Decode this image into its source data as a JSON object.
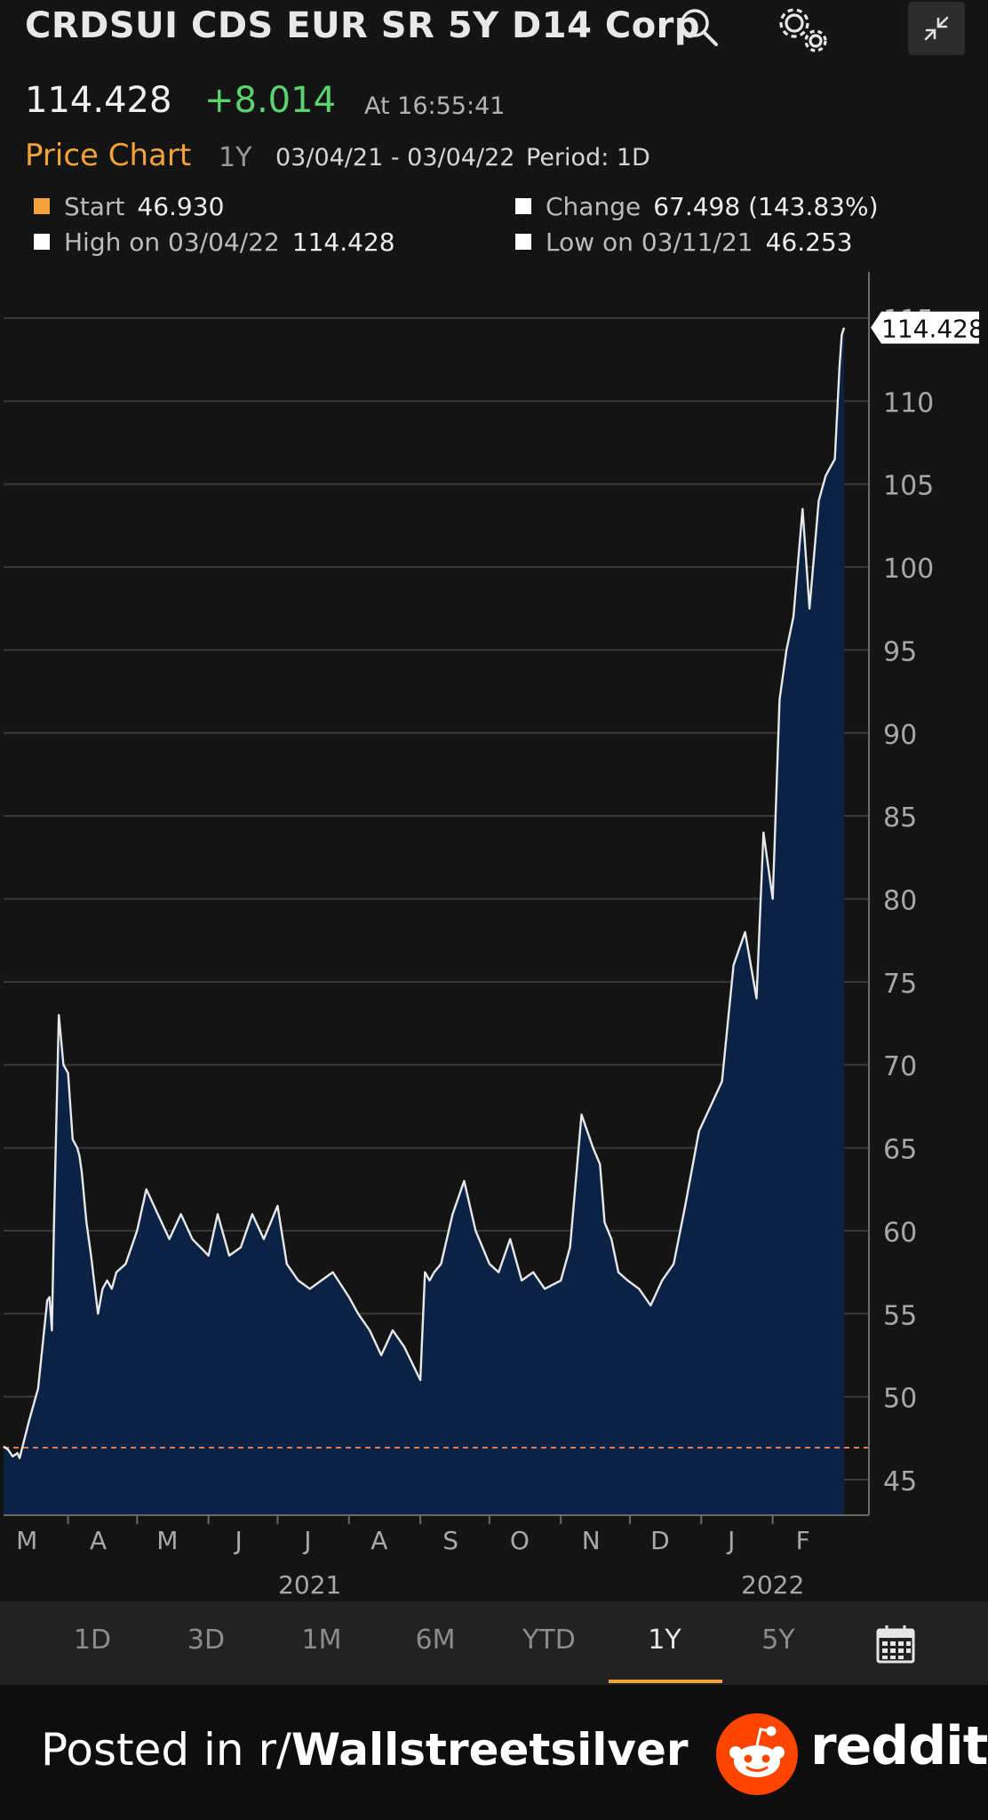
{
  "header": {
    "title": "CRDSUI CDS EUR SR 5Y D14 Corp",
    "last_price": "114.428",
    "change": "+8.014",
    "time": "At 16:55:41",
    "chart_label": "Price Chart",
    "range": "1Y",
    "date_range": "03/04/21 - 03/04/22",
    "period": "Period: 1D",
    "icons": [
      "search-icon",
      "gear-icon",
      "collapse-icon"
    ]
  },
  "stats": {
    "start_label": "Start",
    "start_value": "46.930",
    "change_label": "Change",
    "change_value": "67.498 (143.83%)",
    "high_label": "High on 03/04/22",
    "high_value": "114.428",
    "low_label": "Low on 03/11/21",
    "low_value": "46.253"
  },
  "colors": {
    "accent": "#f4a33a",
    "positive": "#5bd46f",
    "area_fill": "#0c2244",
    "line": "#e8e8e8",
    "reference_line": "#e07a50"
  },
  "chart_data": {
    "type": "area",
    "title": "",
    "xlabel": "",
    "ylabel": "",
    "ylim": [
      43,
      116
    ],
    "grid": true,
    "y_ticks": [
      45,
      50,
      55,
      60,
      65,
      70,
      75,
      80,
      85,
      90,
      95,
      100,
      105,
      110,
      115
    ],
    "x_ticks": [
      {
        "label": "M",
        "date": "2021-03"
      },
      {
        "label": "A",
        "date": "2021-04"
      },
      {
        "label": "M",
        "date": "2021-05"
      },
      {
        "label": "J",
        "date": "2021-06"
      },
      {
        "label": "J",
        "date": "2021-07"
      },
      {
        "label": "A",
        "date": "2021-08"
      },
      {
        "label": "S",
        "date": "2021-09"
      },
      {
        "label": "O",
        "date": "2021-10"
      },
      {
        "label": "N",
        "date": "2021-11"
      },
      {
        "label": "D",
        "date": "2021-12"
      },
      {
        "label": "J",
        "date": "2022-01"
      },
      {
        "label": "F",
        "date": "2022-02"
      }
    ],
    "year_labels": [
      {
        "label": "2021",
        "date": "2021-07-15"
      },
      {
        "label": "2022",
        "date": "2022-02-01"
      }
    ],
    "reference_line": 46.93,
    "last_value_label": "114.428",
    "series": [
      {
        "x": [
          "2021-03-04",
          "2021-03-06",
          "2021-03-08",
          "2021-03-10",
          "2021-03-11",
          "2021-03-15",
          "2021-03-19",
          "2021-03-23",
          "2021-03-24",
          "2021-03-25",
          "2021-03-26",
          "2021-03-28",
          "2021-03-30",
          "2021-04-01",
          "2021-04-03",
          "2021-04-05",
          "2021-04-06",
          "2021-04-07",
          "2021-04-09",
          "2021-04-11",
          "2021-04-14",
          "2021-04-16",
          "2021-04-18",
          "2021-04-20",
          "2021-04-22",
          "2021-04-26",
          "2021-05-01",
          "2021-05-05",
          "2021-05-10",
          "2021-05-15",
          "2021-05-20",
          "2021-05-25",
          "2021-06-01",
          "2021-06-05",
          "2021-06-10",
          "2021-06-15",
          "2021-06-20",
          "2021-06-25",
          "2021-07-01",
          "2021-07-05",
          "2021-07-10",
          "2021-07-15",
          "2021-07-20",
          "2021-07-25",
          "2021-08-01",
          "2021-08-05",
          "2021-08-10",
          "2021-08-15",
          "2021-08-20",
          "2021-08-25",
          "2021-09-01",
          "2021-09-03",
          "2021-09-05",
          "2021-09-07",
          "2021-09-10",
          "2021-09-15",
          "2021-09-20",
          "2021-09-25",
          "2021-10-01",
          "2021-10-05",
          "2021-10-10",
          "2021-10-15",
          "2021-10-20",
          "2021-10-25",
          "2021-11-01",
          "2021-11-05",
          "2021-11-10",
          "2021-11-15",
          "2021-11-18",
          "2021-11-20",
          "2021-11-23",
          "2021-11-26",
          "2021-11-30",
          "2021-12-05",
          "2021-12-10",
          "2021-12-15",
          "2021-12-20",
          "2021-12-25",
          "2021-12-31",
          "2022-01-05",
          "2022-01-10",
          "2022-01-15",
          "2022-01-20",
          "2022-01-25",
          "2022-01-28",
          "2022-02-01",
          "2022-02-04",
          "2022-02-07",
          "2022-02-10",
          "2022-02-14",
          "2022-02-17",
          "2022-02-21",
          "2022-02-24",
          "2022-02-26",
          "2022-02-28",
          "2022-03-02",
          "2022-03-03",
          "2022-03-04"
        ],
        "values": [
          47.0,
          46.8,
          46.4,
          46.6,
          46.3,
          48.5,
          50.5,
          55.8,
          56.0,
          54.0,
          61.0,
          73.0,
          70.0,
          69.5,
          65.5,
          65.0,
          64.5,
          63.5,
          60.5,
          58.5,
          55.0,
          56.5,
          57.0,
          56.5,
          57.5,
          58.0,
          60.0,
          62.5,
          61.0,
          59.5,
          61.0,
          59.5,
          58.5,
          61.0,
          58.5,
          59.0,
          61.0,
          59.5,
          61.5,
          58.0,
          57.0,
          56.5,
          57.0,
          57.5,
          56.0,
          55.0,
          54.0,
          52.5,
          54.0,
          53.0,
          51.0,
          57.5,
          57.0,
          57.5,
          58.0,
          61.0,
          63.0,
          60.0,
          58.0,
          57.5,
          59.5,
          57.0,
          57.5,
          56.5,
          57.0,
          59.0,
          67.0,
          65.0,
          64.0,
          60.5,
          59.5,
          57.5,
          57.0,
          56.5,
          55.5,
          57.0,
          58.0,
          61.5,
          66.0,
          67.5,
          69.0,
          76.0,
          78.0,
          74.0,
          84.0,
          80.0,
          92.0,
          95.0,
          97.0,
          103.5,
          97.5,
          104.0,
          105.5,
          106.0,
          106.5,
          112.0,
          114.0,
          114.428
        ]
      }
    ]
  },
  "periods": [
    "1D",
    "3D",
    "1M",
    "6M",
    "YTD",
    "1Y",
    "5Y"
  ],
  "active_period": "1Y",
  "footer": {
    "posted_prefix": "Posted in r/",
    "subreddit": "Wallstreetsilver",
    "brand": "reddit"
  }
}
